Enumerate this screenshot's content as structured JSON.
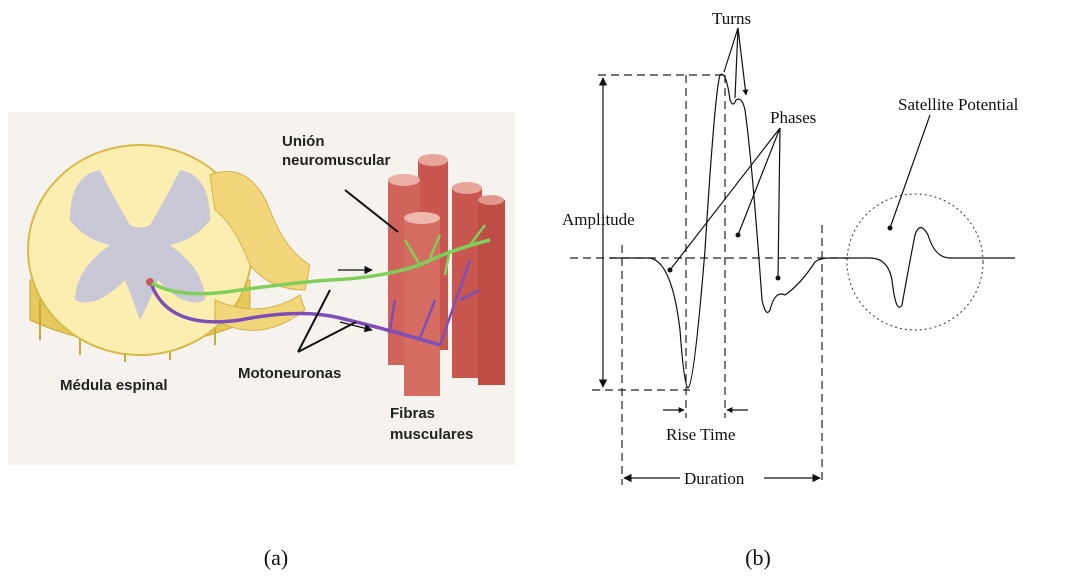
{
  "panel_a": {
    "labels": {
      "union_neuromuscular": [
        "Unión",
        "neuromuscular"
      ],
      "medula_espinal": "Médula espinal",
      "motoneuronas": "Motoneuronas",
      "fibras_musculares": [
        "Fibras",
        "musculares"
      ]
    },
    "caption": "(a)"
  },
  "panel_b": {
    "labels": {
      "turns": "Turns",
      "phases": "Phases",
      "satellite_potential": "Satellite Potential",
      "amplitude": "Amplitude",
      "rise_time": "Rise Time",
      "duration": "Duration"
    },
    "caption": "(b)"
  }
}
